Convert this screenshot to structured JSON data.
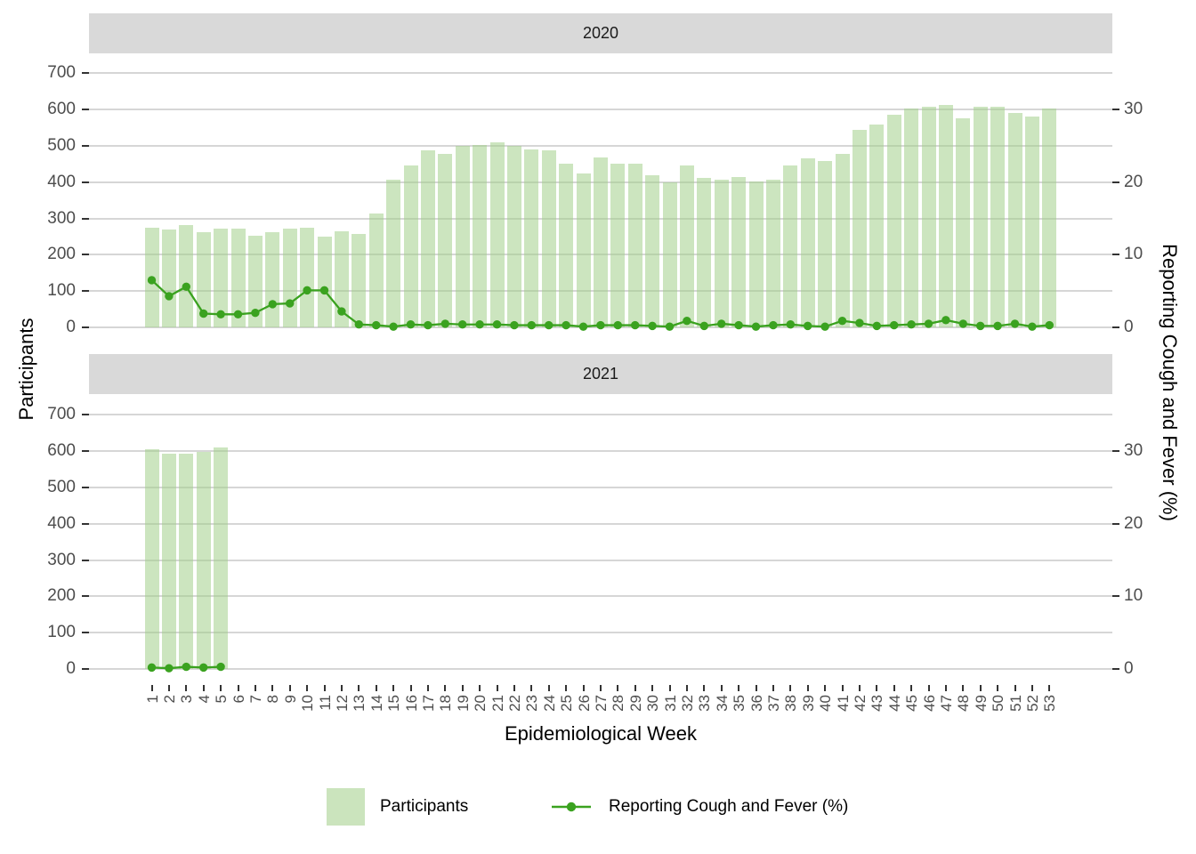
{
  "chart_data": {
    "type": "bar+line",
    "facets": [
      {
        "label": "2020",
        "weeks": [
          1,
          2,
          3,
          4,
          5,
          6,
          7,
          8,
          9,
          10,
          11,
          12,
          13,
          14,
          15,
          16,
          17,
          18,
          19,
          20,
          21,
          22,
          23,
          24,
          25,
          26,
          27,
          28,
          29,
          30,
          31,
          32,
          33,
          34,
          35,
          36,
          37,
          38,
          39,
          40,
          41,
          42,
          43,
          44,
          45,
          46,
          47,
          48,
          49,
          50,
          51,
          52,
          53
        ],
        "participants": [
          275,
          270,
          283,
          262,
          272,
          271,
          252,
          263,
          272,
          274,
          251,
          264,
          257,
          313,
          408,
          446,
          487,
          479,
          500,
          503,
          510,
          500,
          490,
          488,
          452,
          425,
          468,
          450,
          452,
          420,
          400,
          447,
          412,
          407,
          415,
          403,
          408,
          445,
          465,
          458,
          478,
          543,
          558,
          585,
          602,
          608,
          613,
          575,
          607,
          609,
          590,
          582,
          602
        ],
        "pct_cough_fever": [
          6.5,
          4.3,
          5.6,
          1.9,
          1.8,
          1.8,
          2.0,
          3.2,
          3.3,
          5.1,
          5.1,
          2.2,
          0.4,
          0.3,
          0.1,
          0.4,
          0.3,
          0.5,
          0.4,
          0.4,
          0.4,
          0.3,
          0.3,
          0.3,
          0.3,
          0.1,
          0.3,
          0.3,
          0.3,
          0.2,
          0.1,
          0.9,
          0.2,
          0.5,
          0.3,
          0.1,
          0.3,
          0.4,
          0.2,
          0.1,
          0.9,
          0.6,
          0.2,
          0.3,
          0.4,
          0.5,
          1.0,
          0.5,
          0.2,
          0.2,
          0.5,
          0.1,
          0.3
        ]
      },
      {
        "label": "2021",
        "weeks": [
          1,
          2,
          3,
          4,
          5
        ],
        "participants": [
          606,
          592,
          594,
          599,
          611
        ],
        "pct_cough_fever": [
          0.2,
          0.1,
          0.3,
          0.2,
          0.3
        ]
      }
    ],
    "x_axis": {
      "title": "Epidemiological Week",
      "tick_labels": [
        "1",
        "2",
        "3",
        "4",
        "5",
        "6",
        "7",
        "8",
        "9",
        "10",
        "11",
        "12",
        "13",
        "14",
        "15",
        "16",
        "17",
        "18",
        "19",
        "20",
        "21",
        "22",
        "23",
        "24",
        "25",
        "26",
        "27",
        "28",
        "29",
        "30",
        "31",
        "32",
        "33",
        "34",
        "35",
        "36",
        "37",
        "38",
        "39",
        "40",
        "41",
        "42",
        "43",
        "44",
        "45",
        "46",
        "47",
        "48",
        "49",
        "50",
        "51",
        "52",
        "53"
      ]
    },
    "left_axis": {
      "title": "Participants",
      "tick_values": [
        0,
        100,
        200,
        300,
        400,
        500,
        600,
        700
      ],
      "range": [
        0,
        700
      ]
    },
    "right_axis": {
      "title": "Reporting Cough and Fever (%)",
      "tick_values": [
        0,
        10,
        20,
        30
      ],
      "range": [
        0,
        35
      ]
    },
    "legend": {
      "items": [
        {
          "label": "Participants",
          "type": "fill"
        },
        {
          "label": "Reporting Cough and Fever (%)",
          "type": "line"
        }
      ]
    },
    "colors": {
      "bar_fill": "#CBE4BD",
      "line": "#3AA21F",
      "strip_bg": "#D9D9D9",
      "gridline": "#D6D6D6",
      "tick_label": "#4D4D4D",
      "axis_title": "#000000",
      "tick_mark": "#333333"
    }
  }
}
